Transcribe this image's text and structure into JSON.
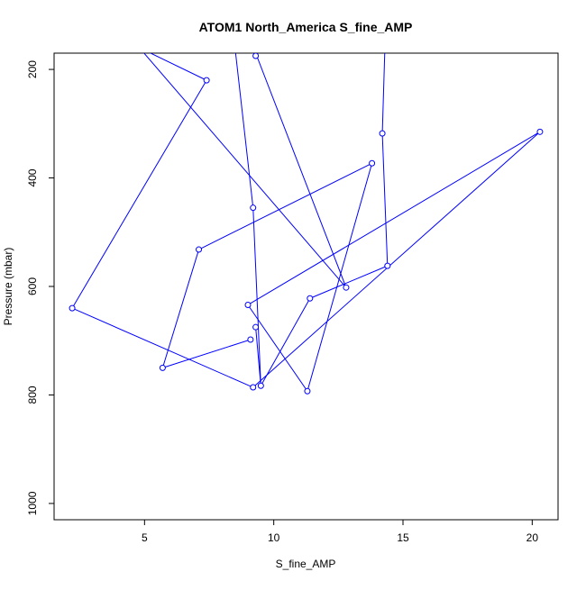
{
  "chart_data": {
    "type": "line",
    "title": "ATOM1 North_America S_fine_AMP",
    "xlabel": "S_fine_AMP",
    "ylabel": "Pressure (mbar)",
    "xlim": [
      1.5,
      21.0
    ],
    "ylim": [
      1030,
      170
    ],
    "y_reversed": true,
    "xticks": [
      5,
      10,
      15,
      20
    ],
    "yticks": [
      200,
      400,
      600,
      800,
      1000
    ],
    "grid": false,
    "series": [
      {
        "color": "#0000ff",
        "points": [
          {
            "x": 2.2,
            "y": 640
          },
          {
            "x": 7.4,
            "y": 220
          },
          {
            "x": 4.5,
            "y": 110
          },
          {
            "x": 12.8,
            "y": 602
          },
          {
            "x": 9.3,
            "y": 175
          },
          {
            "x": 8.6,
            "y": 50
          },
          {
            "x": 9.2,
            "y": 455
          },
          {
            "x": 9.5,
            "y": 783
          },
          {
            "x": 11.4,
            "y": 622
          },
          {
            "x": 14.4,
            "y": 562
          },
          {
            "x": 14.2,
            "y": 318
          },
          {
            "x": 14.3,
            "y": 60
          }
        ],
        "segments_from": [
          [
            2.2,
            640
          ],
          [
            9.2,
            786
          ],
          [
            20.3,
            315
          ],
          [
            9.0,
            634
          ],
          [
            13.8,
            373
          ],
          [
            11.3,
            793
          ],
          [
            9.3,
            675
          ],
          [
            9.1,
            698
          ],
          [
            5.7,
            750
          ],
          [
            7.1,
            532
          ]
        ],
        "extra_points": [
          {
            "x": 2.2,
            "y": 640
          },
          {
            "x": 9.2,
            "y": 786
          },
          {
            "x": 20.3,
            "y": 315
          },
          {
            "x": 9.0,
            "y": 634
          },
          {
            "x": 14.4,
            "y": 562
          },
          {
            "x": 11.4,
            "y": 622
          },
          {
            "x": 9.5,
            "y": 783
          },
          {
            "x": 13.8,
            "y": 373
          },
          {
            "x": 11.3,
            "y": 793
          },
          {
            "x": 9.3,
            "y": 675
          },
          {
            "x": 9.1,
            "y": 698
          },
          {
            "x": 5.7,
            "y": 750
          },
          {
            "x": 7.1,
            "y": 532
          },
          {
            "x": 13.8,
            "y": 373
          }
        ]
      }
    ]
  }
}
